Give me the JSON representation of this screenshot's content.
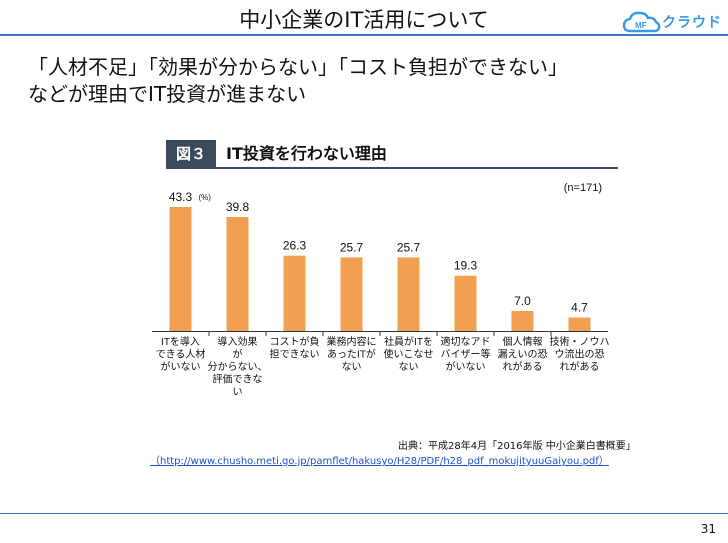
{
  "slide": {
    "title": "中小企業のIT活用について",
    "brand": "クラウド",
    "headline_line1": "「人材不足」「効果が分からない」「コスト負担ができない」",
    "headline_line2": "などが理由でIT投資が進まない",
    "page_number": "31"
  },
  "figure": {
    "label": "図３",
    "title": "IT投資を行わない理由"
  },
  "source": {
    "citation": "出典：平成28年4月「2016年版 中小企業白書概要」",
    "url": "（http://www.chusho.meti.go.jp/pamflet/hakusyo/H28/PDF/h28_pdf_mokujityuuGaiyou.pdf）"
  },
  "colors": {
    "bar": "#f0a050",
    "accent": "#3b78c1",
    "figure_header": "#3c4b5b"
  },
  "chart_data": {
    "type": "bar",
    "unit": "(%)",
    "n_label": "(n=171)",
    "ylim": [
      0,
      50
    ],
    "grid": false,
    "categories": [
      [
        "ITを導入",
        "できる人材",
        "がいない"
      ],
      [
        "導入効果",
        "が",
        "分からない、",
        "評価できな",
        "い"
      ],
      [
        "コストが負",
        "担できない"
      ],
      [
        "業務内容に",
        "あったITが",
        "ない"
      ],
      [
        "社員がITを",
        "使いこなせ",
        "ない"
      ],
      [
        "適切なアド",
        "バイザー等",
        "がいない"
      ],
      [
        "個人情報",
        "漏えいの恐",
        "れがある"
      ],
      [
        "技術・ノウハ",
        "ウ流出の恐",
        "れがある"
      ]
    ],
    "values": [
      43.3,
      39.8,
      26.3,
      25.7,
      25.7,
      19.3,
      7.0,
      4.7
    ],
    "data_labels": [
      "43.3",
      "39.8",
      "26.3",
      "25.7",
      "25.7",
      "19.3",
      "7.0",
      "4.7"
    ]
  }
}
